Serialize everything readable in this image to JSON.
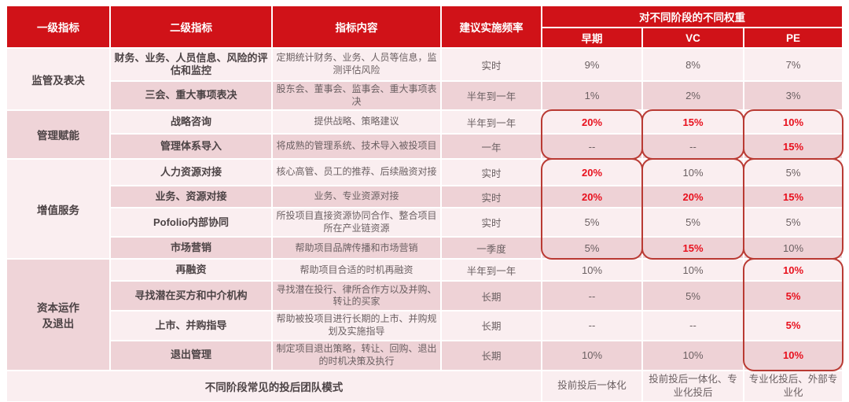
{
  "colors": {
    "header_red": "#d01218",
    "emphasis_red": "#e8101d",
    "highlight_border": "#b93a33",
    "row_light": "#faeef0",
    "row_dark": "#eed2d6"
  },
  "table": {
    "headers": {
      "level1": "一级指标",
      "level2": "二级指标",
      "content": "指标内容",
      "frequency": "建议实施频率",
      "weights_group": "对不同阶段的不同权重",
      "stages": [
        "早期",
        "VC",
        "PE"
      ]
    },
    "groups": [
      {
        "name": "监管及表决",
        "rows": [
          {
            "indicator": "财务、业务、人员信息、风险的评估和监控",
            "content": "定期统计财务、业务、人员等信息，监测评估风险",
            "frequency": "实时",
            "weights": [
              {
                "v": "9%"
              },
              {
                "v": "8%"
              },
              {
                "v": "7%"
              }
            ]
          },
          {
            "indicator": "三会、重大事项表决",
            "content": "股东会、董事会、监事会、重大事项表决",
            "frequency": "半年到一年",
            "weights": [
              {
                "v": "1%"
              },
              {
                "v": "2%"
              },
              {
                "v": "3%"
              }
            ]
          }
        ]
      },
      {
        "name": "管理赋能",
        "rows": [
          {
            "indicator": "战略咨询",
            "content": "提供战略、策略建议",
            "frequency": "半年到一年",
            "weights": [
              {
                "v": "20%",
                "em": true
              },
              {
                "v": "15%",
                "em": true
              },
              {
                "v": "10%",
                "em": true
              }
            ]
          },
          {
            "indicator": "管理体系导入",
            "content": "将成熟的管理系统、技术导入被投项目",
            "frequency": "一年",
            "weights": [
              {
                "v": "--"
              },
              {
                "v": "--"
              },
              {
                "v": "15%",
                "em": true
              }
            ]
          }
        ]
      },
      {
        "name": "增值服务",
        "rows": [
          {
            "indicator": "人力资源对接",
            "content": "核心高管、员工的推荐、后续融资对接",
            "frequency": "实时",
            "weights": [
              {
                "v": "20%",
                "em": true
              },
              {
                "v": "10%"
              },
              {
                "v": "5%"
              }
            ]
          },
          {
            "indicator": "业务、资源对接",
            "content": "业务、专业资源对接",
            "frequency": "实时",
            "weights": [
              {
                "v": "20%",
                "em": true
              },
              {
                "v": "20%",
                "em": true
              },
              {
                "v": "15%",
                "em": true
              }
            ]
          },
          {
            "indicator": "Pofolio内部协同",
            "content": "所投项目直接资源协同合作、整合项目所在产业链资源",
            "frequency": "实时",
            "weights": [
              {
                "v": "5%"
              },
              {
                "v": "5%"
              },
              {
                "v": "5%"
              }
            ]
          },
          {
            "indicator": "市场营销",
            "content": "帮助项目品牌传播和市场营销",
            "frequency": "一季度",
            "weights": [
              {
                "v": "5%"
              },
              {
                "v": "15%",
                "em": true
              },
              {
                "v": "10%"
              }
            ]
          }
        ]
      },
      {
        "name": "资本运作\n及退出",
        "rows": [
          {
            "indicator": "再融资",
            "content": "帮助项目合适的时机再融资",
            "frequency": "半年到一年",
            "weights": [
              {
                "v": "10%"
              },
              {
                "v": "10%"
              },
              {
                "v": "10%",
                "em": true
              }
            ]
          },
          {
            "indicator": "寻找潜在买方和中介机构",
            "content": "寻找潜在投行、律所合作方以及并购、转让的买家",
            "frequency": "长期",
            "weights": [
              {
                "v": "--"
              },
              {
                "v": "5%"
              },
              {
                "v": "5%",
                "em": true
              }
            ]
          },
          {
            "indicator": "上市、并购指导",
            "content": "帮助被投项目进行长期的上市、并购规划及实施指导",
            "frequency": "长期",
            "weights": [
              {
                "v": "--"
              },
              {
                "v": "--"
              },
              {
                "v": "5%",
                "em": true
              }
            ]
          },
          {
            "indicator": "退出管理",
            "content": "制定项目退出策略，转让、回购、退出的时机决策及执行",
            "frequency": "长期",
            "weights": [
              {
                "v": "10%"
              },
              {
                "v": "10%"
              },
              {
                "v": "10%",
                "em": true
              }
            ]
          }
        ]
      }
    ],
    "footer": {
      "label": "不同阶段常见的投后团队模式",
      "values": [
        "投前投后一体化",
        "投前投后一体化、专业化投后",
        "专业化投后、外部专业化"
      ]
    },
    "highlights": [
      {
        "stage": 0,
        "from": 2,
        "to": 3
      },
      {
        "stage": 1,
        "from": 2,
        "to": 3
      },
      {
        "stage": 2,
        "from": 2,
        "to": 3
      },
      {
        "stage": 0,
        "from": 4,
        "to": 7
      },
      {
        "stage": 1,
        "from": 4,
        "to": 7
      },
      {
        "stage": 2,
        "from": 4,
        "to": 7
      },
      {
        "stage": 2,
        "from": 8,
        "to": 11
      }
    ]
  }
}
